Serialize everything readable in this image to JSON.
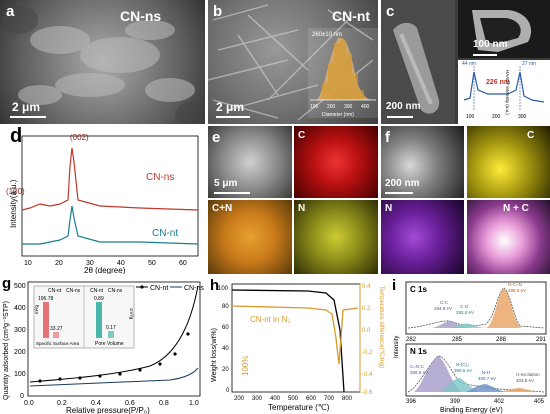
{
  "panels": {
    "a": {
      "letter": "a",
      "label": "CN-ns",
      "scale": "2 μm"
    },
    "b": {
      "letter": "b",
      "label": "CN-nt",
      "scale": "2 μm",
      "inset_note": "260±10 nm",
      "inset_xlabel": "Diameter (nm)",
      "inset_ticks": [
        "100",
        "200",
        "300",
        "400"
      ]
    },
    "c": {
      "letter": "c",
      "scale_left": "200 nm",
      "scale_right": "100 nm",
      "inset_ylabel": "HAADF intensity (a.u.)",
      "inset_meas": [
        "44 nm",
        "27 nm",
        "226 nm"
      ],
      "inset_ticks": [
        "100",
        "200",
        "300"
      ]
    },
    "d": {
      "letter": "d",
      "xlabel": "2θ (degree)",
      "ylabel": "Intensity(a.u.)",
      "series": [
        "CN-ns",
        "CN-nt"
      ],
      "peaks": [
        "(100)",
        "(002)"
      ],
      "xticks": [
        "10",
        "20",
        "30",
        "40",
        "50",
        "60"
      ]
    },
    "e": {
      "letter": "e",
      "scale": "5 μm",
      "maps": [
        "C",
        "C+N",
        "N"
      ]
    },
    "f": {
      "letter": "f",
      "scale": "200 nm",
      "maps": [
        "C",
        "N",
        "N + C"
      ]
    },
    "g": {
      "letter": "g",
      "xlabel": "Relative pressure(P/P₀)",
      "ylabel": "Quantity adsorbed (cm³g⁻¹STP)",
      "legend": [
        "CN-nt",
        "CN-ns"
      ],
      "xticks": [
        "0.0",
        "0.2",
        "0.4",
        "0.6",
        "0.8",
        "1.0"
      ],
      "yticks": [
        "0",
        "100",
        "200",
        "300",
        "400",
        "500"
      ],
      "inset": {
        "left_title": "Specific Surface Area",
        "right_title": "Pore Volume",
        "values": [
          "196.78",
          "33.27",
          "0.89",
          "0.17"
        ],
        "legend": [
          "CN-nt",
          "CN-ns"
        ],
        "left_unit": "m²/g",
        "right_unit": "cm³/g"
      }
    },
    "h": {
      "letter": "h",
      "xlabel": "Temperature (℃)",
      "ylabel_left": "Weight loss(wt%)",
      "ylabel_right": "Temperature difference(℃/mg)",
      "note": "CN-nt in N₂",
      "pct": "100%",
      "xticks": [
        "200",
        "300",
        "400",
        "500",
        "600",
        "700",
        "800"
      ],
      "yticks_left": [
        "0",
        "20",
        "40",
        "60",
        "80",
        "100"
      ],
      "yticks_right": [
        "0.2",
        "0.0",
        "-0.2",
        "-0.4",
        "-0.6"
      ],
      "right_top": "0.4"
    },
    "i": {
      "letter": "i",
      "c_label": "C 1s",
      "n_label": "N 1s",
      "xlabel": "Binding Energy (eV)",
      "ylabel": "Intensity",
      "c_ticks": [
        "282",
        "285",
        "288",
        "291"
      ],
      "n_ticks": [
        "396",
        "399",
        "402",
        "405"
      ],
      "c_peaks": [
        "C-C",
        "C-O",
        "N-C=N"
      ],
      "c_energies": [
        "284.8 eV",
        "285.8 eV",
        "288.0 eV"
      ],
      "n_peaks": [
        "C=N-C",
        "N-(C)₃",
        "N-H",
        "π-excitation"
      ],
      "n_energies": [
        "398.5 eV",
        "399.6 eV",
        "400.7 eV",
        "403.5 eV"
      ]
    }
  },
  "chart_data": [
    {
      "type": "line",
      "title": "",
      "xlabel": "2θ (degree)",
      "ylabel": "Intensity(a.u.)",
      "series": [
        {
          "name": "CN-ns",
          "peaks_deg": [
            13.0,
            27.4
          ]
        },
        {
          "name": "CN-nt",
          "peaks_deg": [
            13.0,
            27.4
          ]
        }
      ],
      "xlim": [
        10,
        65
      ]
    },
    {
      "type": "bar",
      "title": "Specific Surface Area",
      "categories": [
        "CN-nt",
        "CN-ns"
      ],
      "values": [
        196.78,
        33.27
      ],
      "unit": "m²/g"
    },
    {
      "type": "bar",
      "title": "Pore Volume",
      "categories": [
        "CN-nt",
        "CN-ns"
      ],
      "values": [
        0.89,
        0.17
      ],
      "unit": "cm³/g"
    }
  ],
  "colors": {
    "cnns": "#c0392b",
    "cnnt": "#1a7f8c",
    "ochre": "#d69a2a",
    "black": "#000000"
  }
}
